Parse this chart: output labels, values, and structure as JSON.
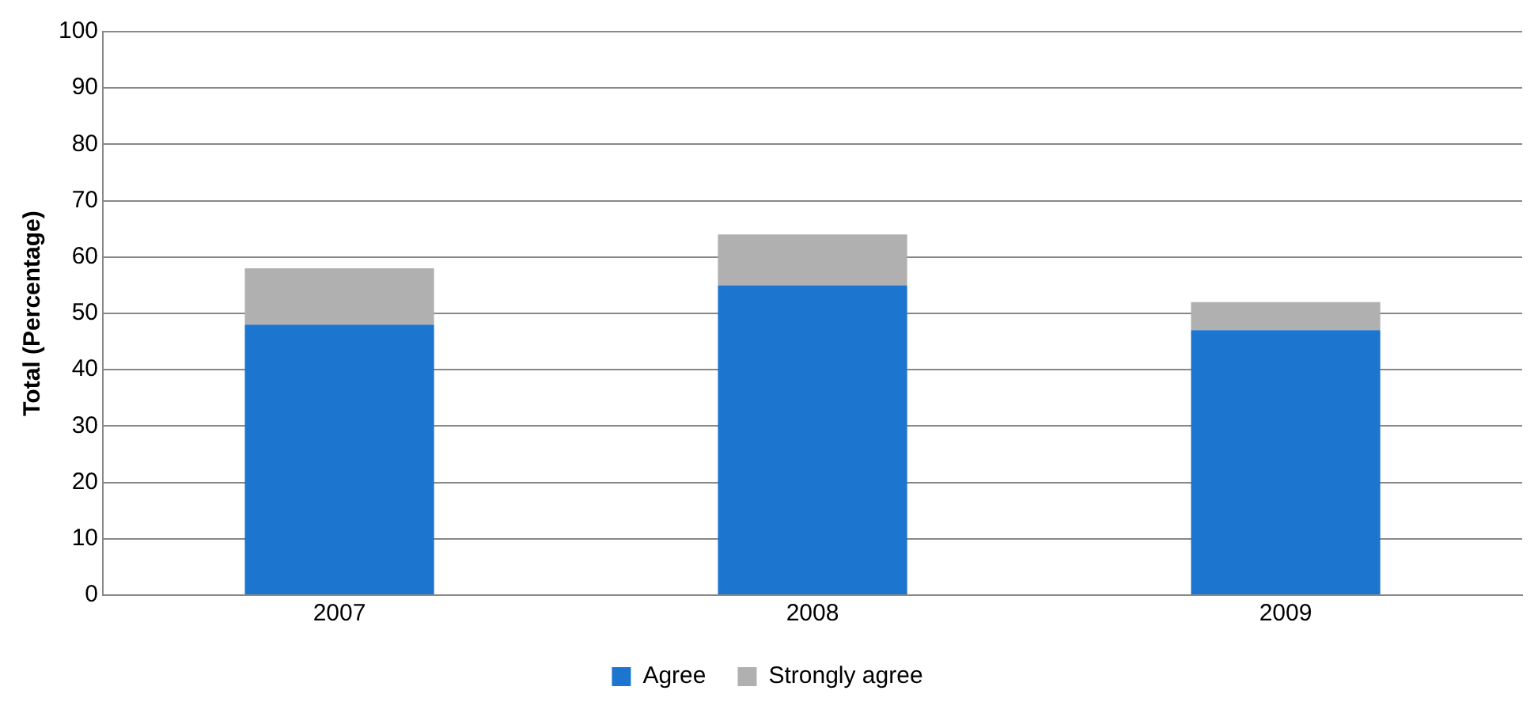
{
  "chart_data": {
    "type": "bar",
    "ylabel": "Total (Percentage)",
    "categories": [
      "2007",
      "2008",
      "2009"
    ],
    "stacked": true,
    "series": [
      {
        "name": "Agree",
        "color": "#1c75cf",
        "values": [
          48,
          55,
          47
        ]
      },
      {
        "name": "Strongly agree",
        "color": "#b0b0b0",
        "values": [
          10,
          9,
          5
        ]
      }
    ],
    "ylim": [
      0,
      100
    ],
    "yticks": [
      0,
      10,
      20,
      30,
      40,
      50,
      60,
      70,
      80,
      90,
      100
    ],
    "grid": "y",
    "legend": "bottom"
  }
}
